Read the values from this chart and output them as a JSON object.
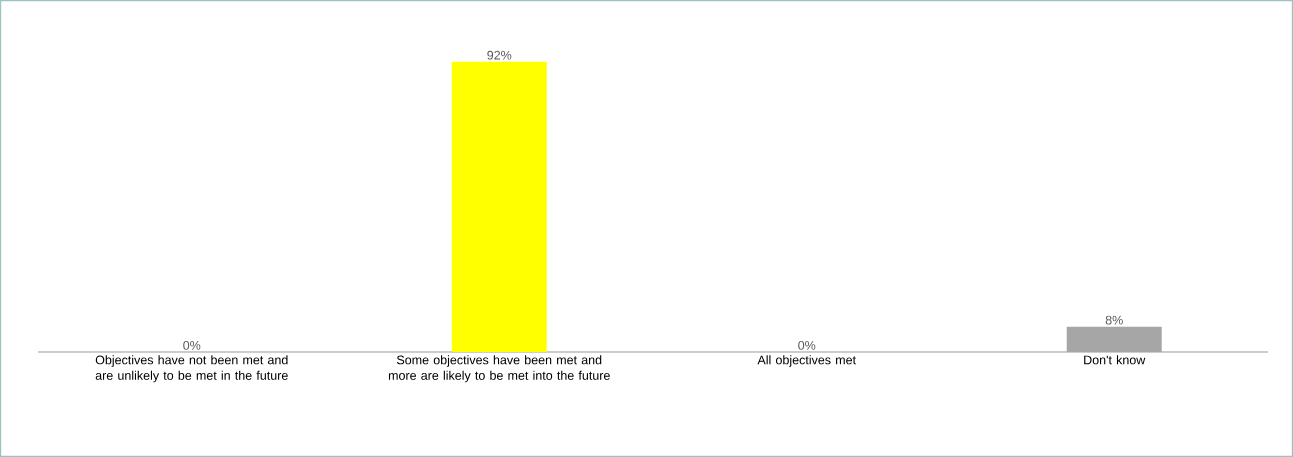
{
  "chart_data": {
    "type": "bar",
    "categories": [
      "Objectives have not been met and are unlikely to be met in the future",
      "Some objectives have been met and more are likely to be met into the future",
      "All objectives met",
      "Don't know"
    ],
    "values": [
      0,
      92,
      0,
      8
    ],
    "colors": [
      "#a6a6a6",
      "#ffff00",
      "#a6a6a6",
      "#a6a6a6"
    ],
    "value_labels": [
      "0%",
      "92%",
      "0%",
      "8%"
    ]
  }
}
